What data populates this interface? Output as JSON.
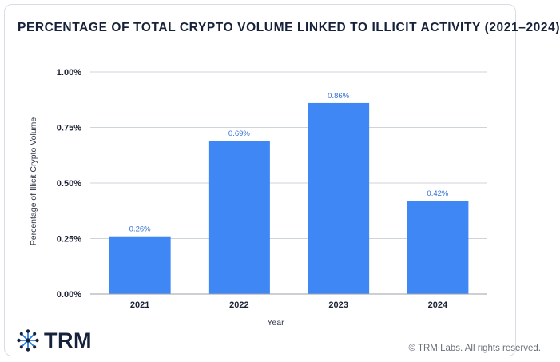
{
  "title": "PERCENTAGE OF TOTAL CRYPTO VOLUME LINKED TO ILLICIT ACTIVITY (2021–2024)",
  "brand": {
    "name": "TRM",
    "logo_icon": "network-nodes-icon"
  },
  "copyright": "© TRM Labs. All rights reserved.",
  "colors": {
    "bar": "#3f87f5",
    "data_label": "#2f6fd6",
    "grid": "#cfd3da",
    "axis": "#9aa0aa",
    "text": "#16213a"
  },
  "chart_data": {
    "type": "bar",
    "categories": [
      "2021",
      "2022",
      "2023",
      "2024"
    ],
    "values": [
      0.26,
      0.69,
      0.86,
      0.42
    ],
    "data_labels": [
      "0.26%",
      "0.69%",
      "0.86%",
      "0.42%"
    ],
    "title": "PERCENTAGE OF TOTAL CRYPTO VOLUME LINKED TO ILLICIT ACTIVITY (2021–2024)",
    "xlabel": "Year",
    "ylabel": "Percentage of Illicit Crypto Volume",
    "ylim": [
      0,
      1.0
    ],
    "yticks": [
      0,
      0.25,
      0.5,
      0.75,
      1.0
    ],
    "ytick_labels": [
      "0.00%",
      "0.25%",
      "0.50%",
      "0.75%",
      "1.00%"
    ],
    "grid": true,
    "legend": "none"
  }
}
